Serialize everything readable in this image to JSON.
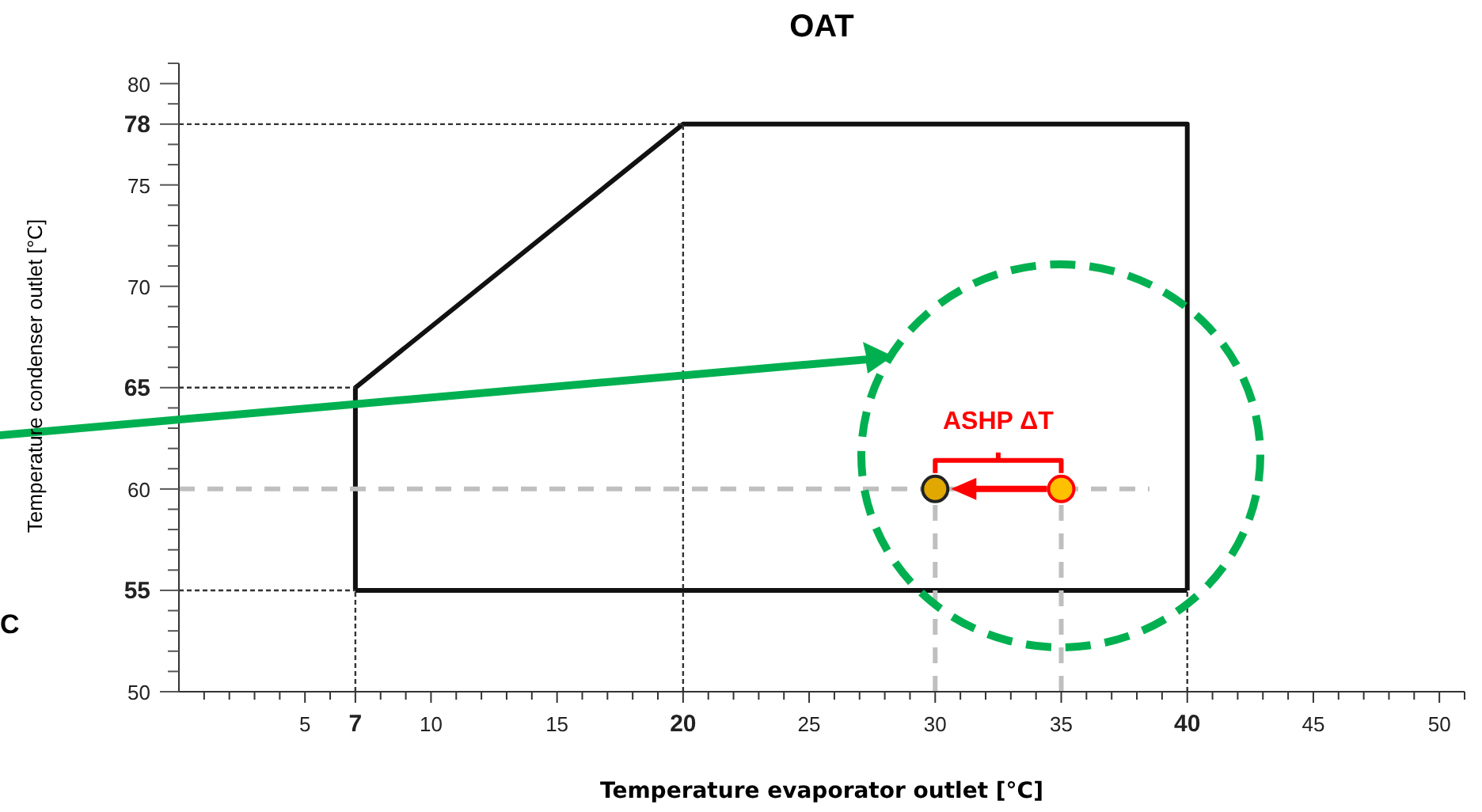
{
  "chart_data": {
    "type": "line",
    "title": "OAT",
    "xlabel": "Temperature evaporator outlet [°C]",
    "ylabel": "Temperature condenser outlet [°C]",
    "xlim": [
      0,
      51
    ],
    "ylim": [
      50,
      81
    ],
    "xticks": [
      {
        "value": 1,
        "label": null
      },
      {
        "value": 2,
        "label": null
      },
      {
        "value": 3,
        "label": null
      },
      {
        "value": 4,
        "label": null
      },
      5,
      {
        "value": 6,
        "label": null
      },
      7,
      {
        "value": 8,
        "label": null
      },
      {
        "value": 9,
        "label": null
      },
      10,
      {
        "value": 11,
        "label": null
      },
      {
        "value": 12,
        "label": null
      },
      {
        "value": 13,
        "label": null
      },
      {
        "value": 14,
        "label": null
      },
      15,
      {
        "value": 16,
        "label": null
      },
      {
        "value": 17,
        "label": null
      },
      {
        "value": 18,
        "label": null
      },
      {
        "value": 19,
        "label": null
      },
      20,
      {
        "value": 21,
        "label": null
      },
      {
        "value": 22,
        "label": null
      },
      {
        "value": 23,
        "label": null
      },
      {
        "value": 24,
        "label": null
      },
      25,
      {
        "value": 26,
        "label": null
      },
      {
        "value": 27,
        "label": null
      },
      {
        "value": 28,
        "label": null
      },
      {
        "value": 29,
        "label": null
      },
      30,
      {
        "value": 31,
        "label": null
      },
      {
        "value": 32,
        "label": null
      },
      {
        "value": 33,
        "label": null
      },
      {
        "value": 34,
        "label": null
      },
      35,
      {
        "value": 36,
        "label": null
      },
      {
        "value": 37,
        "label": null
      },
      {
        "value": 38,
        "label": null
      },
      {
        "value": 39,
        "label": null
      },
      40,
      {
        "value": 41,
        "label": null
      },
      {
        "value": 42,
        "label": null
      },
      {
        "value": 43,
        "label": null
      },
      {
        "value": 44,
        "label": null
      },
      45,
      {
        "value": 46,
        "label": null
      },
      {
        "value": 47,
        "label": null
      },
      {
        "value": 48,
        "label": null
      },
      {
        "value": 49,
        "label": null
      },
      50,
      {
        "value": 51,
        "label": null
      }
    ],
    "yticks": [
      50,
      {
        "value": 51,
        "label": null
      },
      {
        "value": 52,
        "label": null
      },
      {
        "value": 53,
        "label": null
      },
      {
        "value": 54,
        "label": null
      },
      55,
      {
        "value": 56,
        "label": null
      },
      {
        "value": 57,
        "label": null
      },
      {
        "value": 58,
        "label": null
      },
      {
        "value": 59,
        "label": null
      },
      60,
      {
        "value": 61,
        "label": null
      },
      {
        "value": 62,
        "label": null
      },
      {
        "value": 63,
        "label": null
      },
      {
        "value": 64,
        "label": null
      },
      65,
      {
        "value": 66,
        "label": null
      },
      {
        "value": 67,
        "label": null
      },
      {
        "value": 68,
        "label": null
      },
      {
        "value": 69,
        "label": null
      },
      70,
      {
        "value": 71,
        "label": null
      },
      {
        "value": 72,
        "label": null
      },
      {
        "value": 73,
        "label": null
      },
      {
        "value": 74,
        "label": null
      },
      75,
      {
        "value": 76,
        "label": null
      },
      {
        "value": 77,
        "label": null
      },
      78,
      {
        "value": 79,
        "label": null
      },
      80,
      {
        "value": 81,
        "label": null
      }
    ],
    "series": [
      {
        "color": "#111111",
        "line_style": "solid",
        "x": [
          7,
          7,
          20,
          40,
          40
        ],
        "values": [
          55,
          65,
          78,
          78,
          55
        ]
      },
      {
        "color": "#111111",
        "line_style": "solid",
        "x": [
          7,
          40
        ],
        "values": [
          55,
          55
        ]
      },
      {
        "type": "line",
        "color": "#333333",
        "line_style": "dotted",
        "x": [
          0,
          20
        ],
        "values": [
          78,
          78
        ]
      },
      {
        "type": "line",
        "color": "#333333",
        "line_style": "dotted",
        "x": [
          0,
          7
        ],
        "values": [
          65,
          65
        ]
      },
      {
        "type": "line",
        "color": "#333333",
        "line_style": "dotted",
        "x": [
          0,
          7
        ],
        "values": [
          55,
          55
        ]
      },
      {
        "type": "line",
        "color": "#333333",
        "line_style": "dotted",
        "x": [
          7,
          7
        ],
        "values": [
          50,
          55
        ]
      },
      {
        "type": "line",
        "color": "#333333",
        "line_style": "dotted",
        "x": [
          20,
          20
        ],
        "values": [
          50,
          78
        ]
      },
      {
        "type": "line",
        "color": "#333333",
        "line_style": "dotted",
        "x": [
          40,
          40
        ],
        "values": [
          50,
          55
        ]
      },
      {
        "type": "line",
        "color": "#bfbfbf",
        "line_style": "dashed",
        "x": [
          0,
          38.5
        ],
        "values": [
          60,
          60
        ]
      },
      {
        "type": "line",
        "color": "#bfbfbf",
        "line_style": "dashed",
        "x": [
          30,
          30
        ],
        "values": [
          50,
          60
        ]
      },
      {
        "type": "line",
        "color": "#bfbfbf",
        "line_style": "dashed",
        "x": [
          35,
          35
        ],
        "values": [
          50,
          60
        ]
      },
      {
        "type": "scatter",
        "x": [
          30,
          35
        ],
        "values": [
          60,
          60
        ],
        "colors": [
          "#e0a800",
          "#ffc000"
        ]
      }
    ],
    "annotations": [
      "ASHP ΔT",
      "C"
    ]
  }
}
